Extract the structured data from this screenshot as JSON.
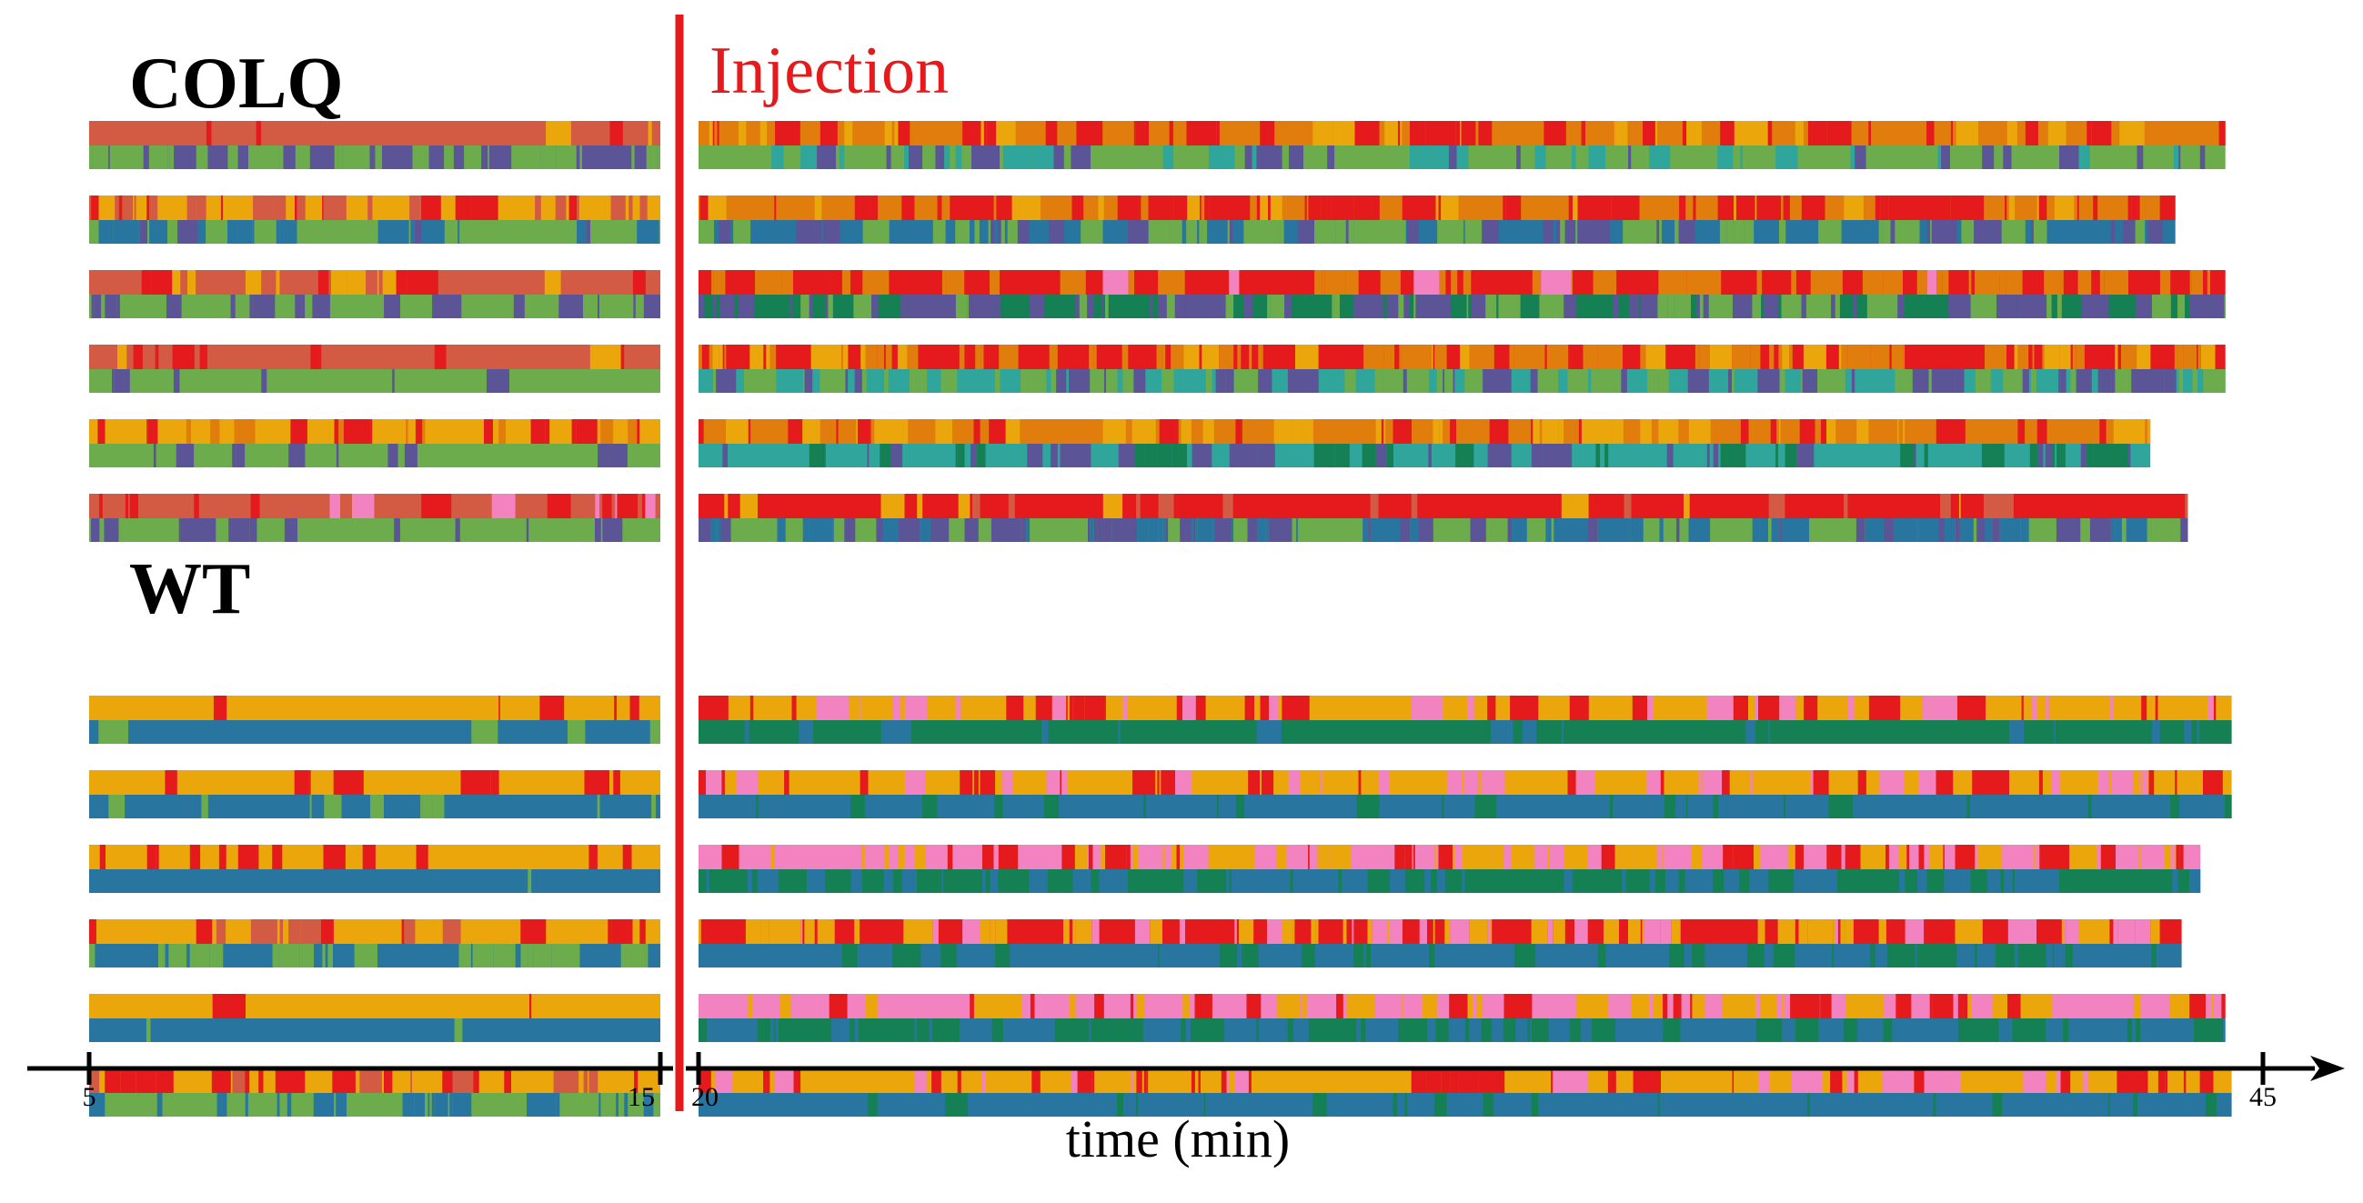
{
  "chart_data": {
    "type": "heatmap",
    "title": "",
    "xlabel": "time (min)",
    "ylabel": "",
    "xlim": [
      5,
      45
    ],
    "x_ticks": [
      5,
      15,
      20,
      45
    ],
    "axis_break": [
      15,
      20
    ],
    "injection": {
      "label": "Injection",
      "time": 17,
      "color": "#e41a1c"
    },
    "palette": {
      "top": {
        "red": "#e41a1c",
        "orange": "#e17d0c",
        "gold": "#eaa60b",
        "brick": "#d35a43",
        "pink": "#f283c0"
      },
      "bottom": {
        "green": "#6cac4c",
        "purple": "#5b5497",
        "teal": "#2fa59b",
        "blue": "#2876a0",
        "darkgreen": "#158053"
      }
    },
    "groups": [
      {
        "name": "COLQ",
        "subjects": [
          {
            "pre_end": 15,
            "post_end": 44.4,
            "top": {
              "pre": {
                "brick": 0.85,
                "red": 0.1,
                "gold": 0.05
              },
              "post": {
                "orange": 0.5,
                "red": 0.3,
                "gold": 0.2
              }
            },
            "bottom": {
              "pre": {
                "purple": 0.55,
                "green": 0.45
              },
              "post": {
                "green": 0.6,
                "teal": 0.25,
                "purple": 0.15
              }
            }
          },
          {
            "pre_end": 15,
            "post_end": 43.6,
            "top": {
              "pre": {
                "gold": 0.5,
                "brick": 0.3,
                "red": 0.2
              },
              "post": {
                "red": 0.4,
                "orange": 0.45,
                "gold": 0.15
              }
            },
            "bottom": {
              "pre": {
                "green": 0.55,
                "blue": 0.3,
                "purple": 0.15
              },
              "post": {
                "blue": 0.45,
                "green": 0.35,
                "purple": 0.2
              }
            }
          },
          {
            "pre_end": 15,
            "post_end": 44.4,
            "top": {
              "pre": {
                "brick": 0.6,
                "red": 0.25,
                "gold": 0.15
              },
              "post": {
                "red": 0.55,
                "orange": 0.4,
                "pink": 0.05
              }
            },
            "bottom": {
              "pre": {
                "green": 0.6,
                "purple": 0.4
              },
              "post": {
                "darkgreen": 0.4,
                "green": 0.3,
                "purple": 0.3
              }
            }
          },
          {
            "pre_end": 15,
            "post_end": 44.4,
            "top": {
              "pre": {
                "brick": 0.8,
                "red": 0.15,
                "gold": 0.05
              },
              "post": {
                "red": 0.45,
                "orange": 0.45,
                "gold": 0.1
              }
            },
            "bottom": {
              "pre": {
                "green": 0.85,
                "purple": 0.15
              },
              "post": {
                "teal": 0.4,
                "green": 0.35,
                "purple": 0.25
              }
            }
          },
          {
            "pre_end": 15,
            "post_end": 43.2,
            "top": {
              "pre": {
                "gold": 0.65,
                "red": 0.25,
                "orange": 0.1
              },
              "post": {
                "orange": 0.6,
                "gold": 0.25,
                "red": 0.15
              }
            },
            "bottom": {
              "pre": {
                "green": 0.85,
                "purple": 0.15
              },
              "post": {
                "teal": 0.65,
                "darkgreen": 0.2,
                "purple": 0.15
              }
            }
          },
          {
            "pre_end": 15,
            "post_end": 43.8,
            "top": {
              "pre": {
                "brick": 0.75,
                "red": 0.15,
                "pink": 0.1
              },
              "post": {
                "red": 0.85,
                "brick": 0.1,
                "gold": 0.05
              }
            },
            "bottom": {
              "pre": {
                "green": 0.8,
                "purple": 0.2
              },
              "post": {
                "green": 0.35,
                "blue": 0.35,
                "purple": 0.3
              }
            }
          }
        ]
      },
      {
        "name": "WT",
        "subjects": [
          {
            "pre_end": 15,
            "post_end": 44.5,
            "top": {
              "pre": {
                "gold": 0.92,
                "red": 0.08
              },
              "post": {
                "gold": 0.7,
                "red": 0.15,
                "pink": 0.15
              }
            },
            "bottom": {
              "pre": {
                "blue": 0.9,
                "green": 0.1
              },
              "post": {
                "darkgreen": 0.85,
                "blue": 0.15
              }
            }
          },
          {
            "pre_end": 15,
            "post_end": 44.5,
            "top": {
              "pre": {
                "gold": 0.75,
                "red": 0.25
              },
              "post": {
                "gold": 0.7,
                "red": 0.15,
                "pink": 0.15
              }
            },
            "bottom": {
              "pre": {
                "blue": 0.85,
                "green": 0.15
              },
              "post": {
                "blue": 0.85,
                "darkgreen": 0.15
              }
            }
          },
          {
            "pre_end": 15,
            "post_end": 44,
            "top": {
              "pre": {
                "gold": 0.75,
                "red": 0.25
              },
              "post": {
                "pink": 0.5,
                "gold": 0.35,
                "red": 0.15
              }
            },
            "bottom": {
              "pre": {
                "blue": 0.95,
                "green": 0.05
              },
              "post": {
                "darkgreen": 0.6,
                "blue": 0.4
              }
            }
          },
          {
            "pre_end": 15,
            "post_end": 43.7,
            "top": {
              "pre": {
                "gold": 0.55,
                "red": 0.3,
                "brick": 0.15
              },
              "post": {
                "red": 0.4,
                "gold": 0.35,
                "pink": 0.25
              }
            },
            "bottom": {
              "pre": {
                "blue": 0.6,
                "green": 0.4
              },
              "post": {
                "blue": 0.7,
                "darkgreen": 0.3
              }
            }
          },
          {
            "pre_end": 15,
            "post_end": 44.4,
            "top": {
              "pre": {
                "gold": 0.97,
                "red": 0.03
              },
              "post": {
                "pink": 0.55,
                "gold": 0.3,
                "red": 0.15
              }
            },
            "bottom": {
              "pre": {
                "blue": 0.95,
                "green": 0.05
              },
              "post": {
                "blue": 0.6,
                "darkgreen": 0.4
              }
            }
          },
          {
            "pre_end": 15,
            "post_end": 44.5,
            "top": {
              "pre": {
                "gold": 0.65,
                "red": 0.25,
                "brick": 0.1
              },
              "post": {
                "gold": 0.55,
                "red": 0.3,
                "pink": 0.15
              }
            },
            "bottom": {
              "pre": {
                "green": 0.55,
                "blue": 0.45
              },
              "post": {
                "blue": 0.9,
                "darkgreen": 0.1
              }
            }
          }
        ]
      }
    ]
  }
}
